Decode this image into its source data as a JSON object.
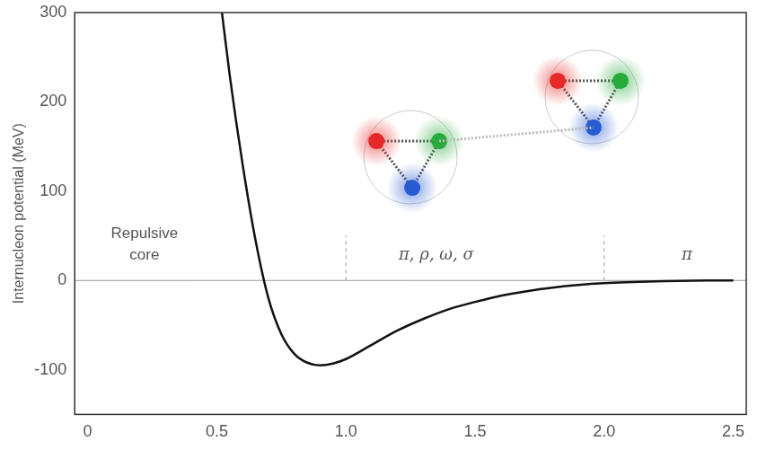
{
  "chart_data": {
    "type": "line",
    "y_label": "Internucleon potential (MeV)",
    "x": [
      0.52,
      0.55,
      0.6,
      0.65,
      0.7,
      0.75,
      0.8,
      0.85,
      0.9,
      0.95,
      1.0,
      1.1,
      1.2,
      1.3,
      1.4,
      1.5,
      1.6,
      1.7,
      1.8,
      1.9,
      2.0,
      2.2,
      2.4,
      2.5
    ],
    "values": [
      300,
      230,
      130,
      45,
      -20,
      -60,
      -82,
      -92,
      -95,
      -93,
      -88,
      -72,
      -56,
      -43,
      -32,
      -24,
      -17,
      -12,
      -8,
      -5,
      -3,
      -1,
      0,
      0
    ],
    "color": "#111111",
    "xlim": [
      -0.05,
      2.55
    ],
    "xticks": [
      0,
      0.5,
      {
        "value": 1,
        "label": "1.0"
      },
      1.5,
      {
        "value": 2,
        "label": "2.0"
      },
      2.5
    ],
    "ylim": [
      -150,
      300
    ],
    "yticks": [
      -100,
      0,
      100,
      200,
      300
    ],
    "grid": false,
    "annotations": [
      {
        "text": "Repulsive core",
        "x": 0.22,
        "y": 40
      },
      {
        "text": "π, ρ, ω, σ",
        "x": 1.35,
        "y": 28
      },
      {
        "text": "π",
        "x": 2.32,
        "y": 28
      }
    ],
    "vlines": [
      {
        "x": 1.0,
        "ymin": 0,
        "ymax": 50
      },
      {
        "x": 2.0,
        "ymin": 0,
        "ymax": 50
      }
    ]
  }
}
